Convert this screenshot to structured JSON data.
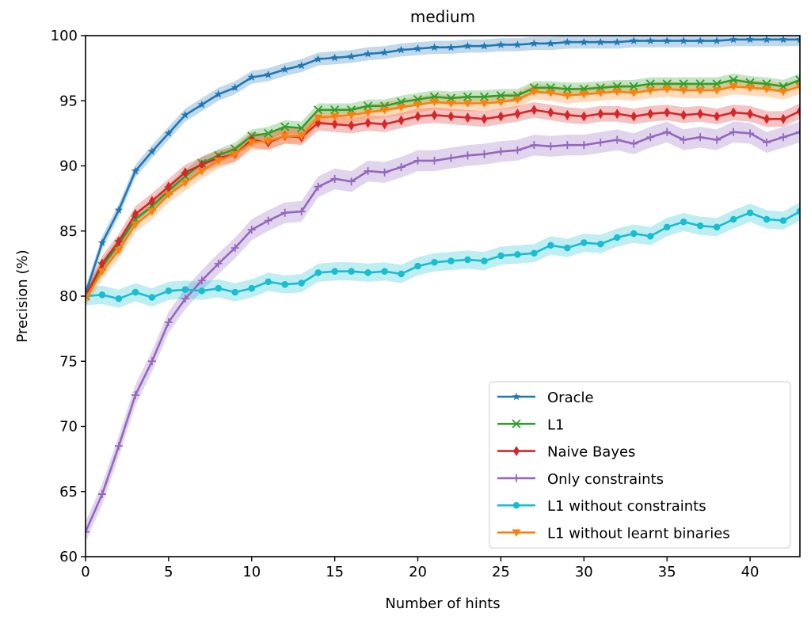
{
  "chart_data": {
    "type": "line",
    "title": "medium",
    "xlabel": "Number of hints",
    "ylabel": "Precision (%)",
    "xlim": [
      0,
      43
    ],
    "ylim": [
      60,
      100
    ],
    "xticks": [
      0,
      5,
      10,
      15,
      20,
      25,
      30,
      35,
      40
    ],
    "yticks": [
      60,
      65,
      70,
      75,
      80,
      85,
      90,
      95,
      100
    ],
    "legend_position": "lower-right",
    "x": [
      0,
      1,
      2,
      3,
      4,
      5,
      6,
      7,
      8,
      9,
      10,
      11,
      12,
      13,
      14,
      15,
      16,
      17,
      18,
      19,
      20,
      21,
      22,
      23,
      24,
      25,
      26,
      27,
      28,
      29,
      30,
      31,
      32,
      33,
      34,
      35,
      36,
      37,
      38,
      39,
      40,
      41,
      42,
      43
    ],
    "series": [
      {
        "name": "Oracle",
        "color": "#1f77b4",
        "marker": "star",
        "band": 0.5,
        "values": [
          80.2,
          84.1,
          86.6,
          89.6,
          91.1,
          92.5,
          93.9,
          94.7,
          95.5,
          96.0,
          96.8,
          97.0,
          97.4,
          97.7,
          98.2,
          98.3,
          98.4,
          98.6,
          98.7,
          98.9,
          99.0,
          99.1,
          99.1,
          99.2,
          99.2,
          99.3,
          99.3,
          99.4,
          99.4,
          99.5,
          99.5,
          99.5,
          99.5,
          99.6,
          99.6,
          99.6,
          99.6,
          99.6,
          99.6,
          99.7,
          99.7,
          99.7,
          99.7,
          99.7
        ]
      },
      {
        "name": "L1",
        "color": "#2ca02c",
        "marker": "x",
        "band": 0.5,
        "values": [
          80.0,
          82.3,
          84.0,
          85.9,
          86.9,
          88.1,
          89.2,
          90.2,
          90.8,
          91.3,
          92.3,
          92.5,
          93.0,
          92.9,
          94.3,
          94.3,
          94.3,
          94.6,
          94.6,
          94.9,
          95.1,
          95.3,
          95.2,
          95.3,
          95.3,
          95.4,
          95.4,
          96.0,
          96.0,
          95.9,
          95.9,
          96.0,
          96.1,
          96.1,
          96.3,
          96.3,
          96.3,
          96.3,
          96.3,
          96.6,
          96.4,
          96.3,
          96.1,
          96.6
        ]
      },
      {
        "name": "Naive Bayes",
        "color": "#d62728",
        "marker": "diamond",
        "band": 0.6,
        "values": [
          80.0,
          82.5,
          84.2,
          86.3,
          87.3,
          88.4,
          89.5,
          90.1,
          90.6,
          90.9,
          92.0,
          91.8,
          92.3,
          92.2,
          93.3,
          93.2,
          93.1,
          93.3,
          93.2,
          93.5,
          93.8,
          93.9,
          93.8,
          93.7,
          93.6,
          93.8,
          94.0,
          94.3,
          94.1,
          93.9,
          93.8,
          94.0,
          94.0,
          93.8,
          94.0,
          94.1,
          93.9,
          94.0,
          93.8,
          94.1,
          94.0,
          93.6,
          93.6,
          94.2
        ]
      },
      {
        "name": "Only constraints",
        "color": "#9467bd",
        "marker": "plus",
        "band": 0.8,
        "values": [
          61.9,
          64.8,
          68.5,
          72.4,
          75.0,
          78.0,
          79.8,
          81.2,
          82.5,
          83.7,
          85.1,
          85.8,
          86.4,
          86.5,
          88.4,
          89.0,
          88.8,
          89.6,
          89.5,
          89.9,
          90.4,
          90.4,
          90.6,
          90.8,
          90.9,
          91.1,
          91.2,
          91.6,
          91.5,
          91.6,
          91.6,
          91.8,
          92.0,
          91.7,
          92.2,
          92.6,
          92.0,
          92.2,
          92.0,
          92.6,
          92.5,
          91.8,
          92.2,
          92.6
        ]
      },
      {
        "name": "L1 without constraints",
        "color": "#17becf",
        "marker": "circle",
        "band": 0.7,
        "values": [
          80.0,
          80.1,
          79.8,
          80.3,
          79.9,
          80.4,
          80.5,
          80.4,
          80.6,
          80.3,
          80.6,
          81.1,
          80.9,
          81.0,
          81.8,
          81.9,
          81.9,
          81.8,
          81.9,
          81.7,
          82.3,
          82.6,
          82.7,
          82.8,
          82.7,
          83.1,
          83.2,
          83.3,
          83.9,
          83.7,
          84.1,
          84.0,
          84.5,
          84.8,
          84.6,
          85.3,
          85.7,
          85.4,
          85.3,
          85.9,
          86.4,
          85.9,
          85.8,
          86.5
        ]
      },
      {
        "name": "L1 without learnt binaries",
        "color": "#ff7f0e",
        "marker": "triangle-down",
        "band": 0.6,
        "values": [
          79.8,
          81.9,
          83.5,
          85.5,
          86.5,
          87.8,
          88.7,
          89.6,
          90.4,
          90.9,
          91.8,
          91.9,
          92.3,
          92.3,
          93.7,
          93.8,
          93.9,
          94.1,
          94.3,
          94.5,
          94.7,
          94.9,
          94.8,
          94.8,
          94.8,
          94.9,
          95.1,
          95.7,
          95.6,
          95.4,
          95.5,
          95.6,
          95.7,
          95.6,
          95.8,
          95.9,
          95.8,
          95.8,
          95.8,
          96.1,
          96.0,
          95.9,
          95.7,
          96.1
        ]
      }
    ]
  }
}
